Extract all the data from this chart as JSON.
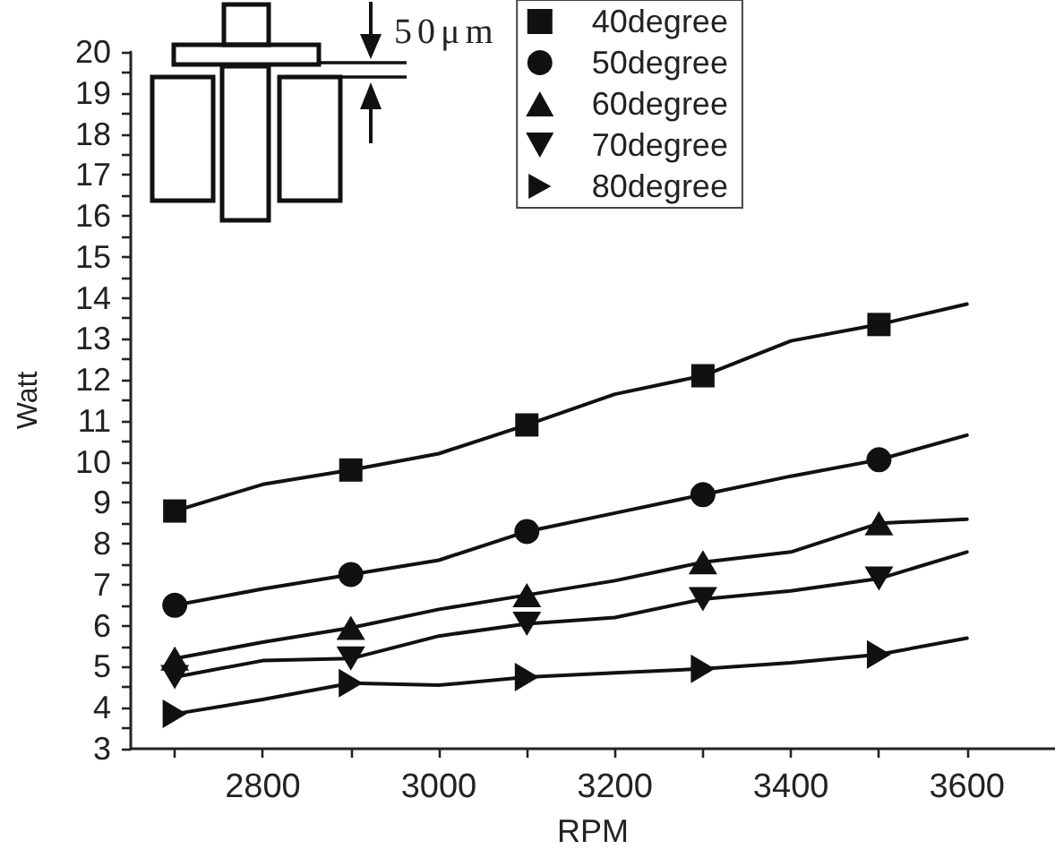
{
  "chart_data": {
    "type": "line",
    "xlabel": "RPM",
    "ylabel": "Watt",
    "annotations": [
      "50μm"
    ],
    "xlim": [
      2650,
      3700
    ],
    "xticks": [
      {
        "value": 2700,
        "label": null
      },
      2800,
      {
        "value": 2900,
        "label": null
      },
      3000,
      {
        "value": 3100,
        "label": null
      },
      3200,
      {
        "value": 3300,
        "label": null
      },
      3400,
      {
        "value": 3500,
        "label": null
      },
      3600
    ],
    "ylim": [
      3,
      20
    ],
    "yticks": [
      3,
      {
        "value": 3.5,
        "label": null
      },
      4,
      {
        "value": 4.5,
        "label": null
      },
      5,
      {
        "value": 5.5,
        "label": null
      },
      6,
      {
        "value": 6.5,
        "label": null
      },
      7,
      {
        "value": 7.5,
        "label": null
      },
      8,
      {
        "value": 8.5,
        "label": null
      },
      9,
      {
        "value": 9.5,
        "label": null
      },
      10,
      {
        "value": 10.5,
        "label": null
      },
      11,
      {
        "value": 11.5,
        "label": null
      },
      12,
      {
        "value": 12.5,
        "label": null
      },
      13,
      {
        "value": 13.5,
        "label": null
      },
      14,
      {
        "value": 14.5,
        "label": null
      },
      15,
      {
        "value": 15.5,
        "label": null
      },
      16,
      {
        "value": 16.5,
        "label": null
      },
      17,
      {
        "value": 17.5,
        "label": null
      },
      18,
      {
        "value": 18.5,
        "label": null
      },
      19,
      {
        "value": 19.5,
        "label": null
      },
      20
    ],
    "legend": "top",
    "line_style": "solid",
    "series": [
      {
        "type": "line",
        "color": "#111111",
        "marker": "none",
        "x": [
          2700,
          2800,
          2900,
          3000,
          3100,
          3200,
          3300,
          3400,
          3500,
          3600
        ],
        "values": [
          8.8,
          9.45,
          9.8,
          10.2,
          10.9,
          11.65,
          12.1,
          12.95,
          13.35,
          13.85
        ]
      },
      {
        "type": "line",
        "color": "#111111",
        "marker": "none",
        "x": [
          2700,
          2800,
          2900,
          3000,
          3100,
          3200,
          3300,
          3400,
          3500,
          3600
        ],
        "values": [
          6.5,
          6.9,
          7.25,
          7.6,
          8.3,
          8.75,
          9.2,
          9.65,
          10.05,
          10.65
        ]
      },
      {
        "type": "line",
        "color": "#111111",
        "marker": "none",
        "x": [
          2700,
          2800,
          2900,
          3000,
          3100,
          3200,
          3300,
          3400,
          3500,
          3600
        ],
        "values": [
          5.2,
          5.6,
          5.95,
          6.4,
          6.75,
          7.1,
          7.55,
          7.8,
          8.5,
          8.6
        ]
      },
      {
        "type": "line",
        "color": "#111111",
        "marker": "none",
        "x": [
          2700,
          2800,
          2900,
          3000,
          3100,
          3200,
          3300,
          3400,
          3500,
          3600
        ],
        "values": [
          4.75,
          5.15,
          5.2,
          5.75,
          6.05,
          6.2,
          6.65,
          6.85,
          7.15,
          7.8
        ]
      },
      {
        "type": "line",
        "color": "#111111",
        "marker": "none",
        "x": [
          2700,
          2800,
          2900,
          3000,
          3100,
          3200,
          3300,
          3400,
          3500,
          3600
        ],
        "values": [
          3.85,
          4.2,
          4.6,
          4.55,
          4.75,
          4.85,
          4.95,
          5.1,
          5.3,
          5.7
        ]
      },
      {
        "type": "scatter",
        "name": "40degree",
        "color": "#111111",
        "marker": "square",
        "x": [
          2700,
          2900,
          3100,
          3300,
          3500
        ],
        "values": [
          8.8,
          9.8,
          10.9,
          12.1,
          13.35
        ]
      },
      {
        "type": "scatter",
        "name": "50degree",
        "color": "#111111",
        "marker": "circle",
        "x": [
          2700,
          2900,
          3100,
          3300,
          3500
        ],
        "values": [
          6.5,
          7.25,
          8.3,
          9.2,
          10.05
        ]
      },
      {
        "type": "scatter",
        "name": "60degree",
        "color": "#111111",
        "marker": "triangle",
        "x": [
          2700,
          2900,
          3100,
          3300,
          3500
        ],
        "values": [
          5.2,
          5.95,
          6.75,
          7.55,
          8.5
        ]
      },
      {
        "type": "scatter",
        "name": "70degree",
        "color": "#111111",
        "marker": "triangle-down",
        "x": [
          2700,
          2900,
          3100,
          3300,
          3500
        ],
        "values": [
          4.75,
          5.2,
          6.05,
          6.65,
          7.15
        ]
      },
      {
        "type": "scatter",
        "name": "80degree",
        "color": "#111111",
        "marker": "triangle-right",
        "x": [
          2700,
          2900,
          3100,
          3300,
          3500
        ],
        "values": [
          3.85,
          4.6,
          4.75,
          4.95,
          5.3
        ]
      }
    ]
  }
}
